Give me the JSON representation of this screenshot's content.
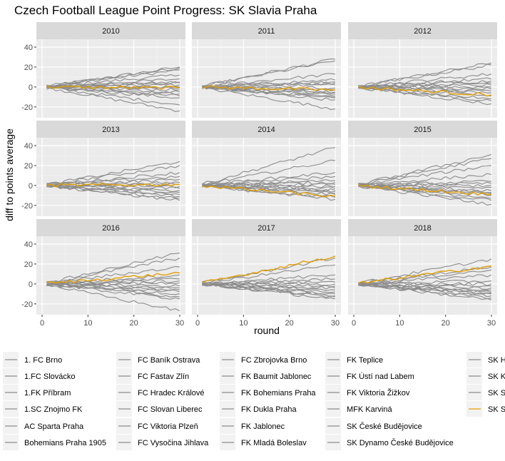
{
  "chart_data": {
    "type": "line",
    "title": "Czech Football League Point Progress: SK Slavia Praha",
    "xlabel": "round",
    "ylabel": "diff to points average",
    "xlim": [
      0,
      30
    ],
    "ylim": [
      -28,
      45
    ],
    "x_ticks": [
      0,
      10,
      20,
      30
    ],
    "y_ticks": [
      -20,
      0,
      20,
      40
    ],
    "highlight_team": "SK Slavia Praha",
    "colors": {
      "highlight": "#E69F00",
      "other": "#8c8c8c",
      "panel": "#ebebeb",
      "strip": "#d9d9d9"
    },
    "panels": [
      {
        "season": "2010",
        "highlight_end": -1,
        "other_ends": [
          20,
          19,
          17,
          12,
          8,
          5,
          4,
          2,
          0,
          -1,
          -3,
          -5,
          -7,
          -9,
          -11,
          -18,
          -24
        ]
      },
      {
        "season": "2011",
        "highlight_end": -3,
        "other_ends": [
          28,
          26,
          13,
          7,
          5,
          4,
          2,
          -1,
          -3,
          -5,
          -6,
          -8,
          -10,
          -11,
          -13,
          -22
        ]
      },
      {
        "season": "2012",
        "highlight_end": -8,
        "other_ends": [
          24,
          22,
          13,
          8,
          6,
          4,
          2,
          0,
          -2,
          -4,
          -6,
          -9,
          -12,
          -14,
          -17
        ]
      },
      {
        "season": "2013",
        "highlight_end": 1,
        "other_ends": [
          24,
          20,
          13,
          9,
          6,
          3,
          1,
          -1,
          -3,
          -5,
          -7,
          -9,
          -11,
          -13,
          -15
        ]
      },
      {
        "season": "2014",
        "highlight_end": -11,
        "other_ends": [
          38,
          25,
          13,
          9,
          5,
          3,
          1,
          -1,
          -3,
          -5,
          -6,
          -8,
          -9,
          -12,
          -14
        ]
      },
      {
        "season": "2015",
        "highlight_end": -9,
        "other_ends": [
          31,
          27,
          20,
          11,
          4,
          2,
          0,
          -2,
          -5,
          -7,
          -8,
          -10,
          -13,
          -15,
          -19
        ]
      },
      {
        "season": "2016",
        "highlight_end": 11,
        "other_ends": [
          31,
          26,
          17,
          9,
          5,
          3,
          1,
          -2,
          -4,
          -6,
          -8,
          -10,
          -13,
          -15,
          -27
        ]
      },
      {
        "season": "2017",
        "highlight_end": 28,
        "other_ends": [
          26,
          19,
          9,
          5,
          2,
          0,
          -2,
          -4,
          -6,
          -8,
          -10,
          -12,
          -13,
          -15
        ]
      },
      {
        "season": "2018",
        "highlight_end": 18,
        "other_ends": [
          25,
          17,
          14,
          9,
          3,
          0,
          -2,
          -4,
          -6,
          -8,
          -9,
          -10,
          -12,
          -14,
          -16
        ]
      }
    ],
    "legend": {
      "placement": "bottom",
      "entries": [
        "1. FC Brno",
        "1.FC Slovácko",
        "1.FK Příbram",
        "1.SC Znojmo FK",
        "AC Sparta Praha",
        "Bohemians Praha 1905",
        "FC Baník Ostrava",
        "FC Fastav Zlín",
        "FC Hradec Králové",
        "FC Slovan Liberec",
        "FC Viktoria Plzeň",
        "FC Vysočina Jihlava",
        "FC Zbrojovka Brno",
        "FK Baumit Jablonec",
        "FK Bohemians Praha",
        "FK Dukla Praha",
        "FK Jablonec",
        "FK Mladá Boleslav",
        "FK Teplice",
        "FK Ústí nad Labem",
        "FK Viktoria Žižkov",
        "MFK Karviná",
        "SK České Budějovice",
        "SK Dynamo České Budějovice",
        "SK H",
        "SK K",
        "SK S",
        "SK S"
      ]
    }
  }
}
